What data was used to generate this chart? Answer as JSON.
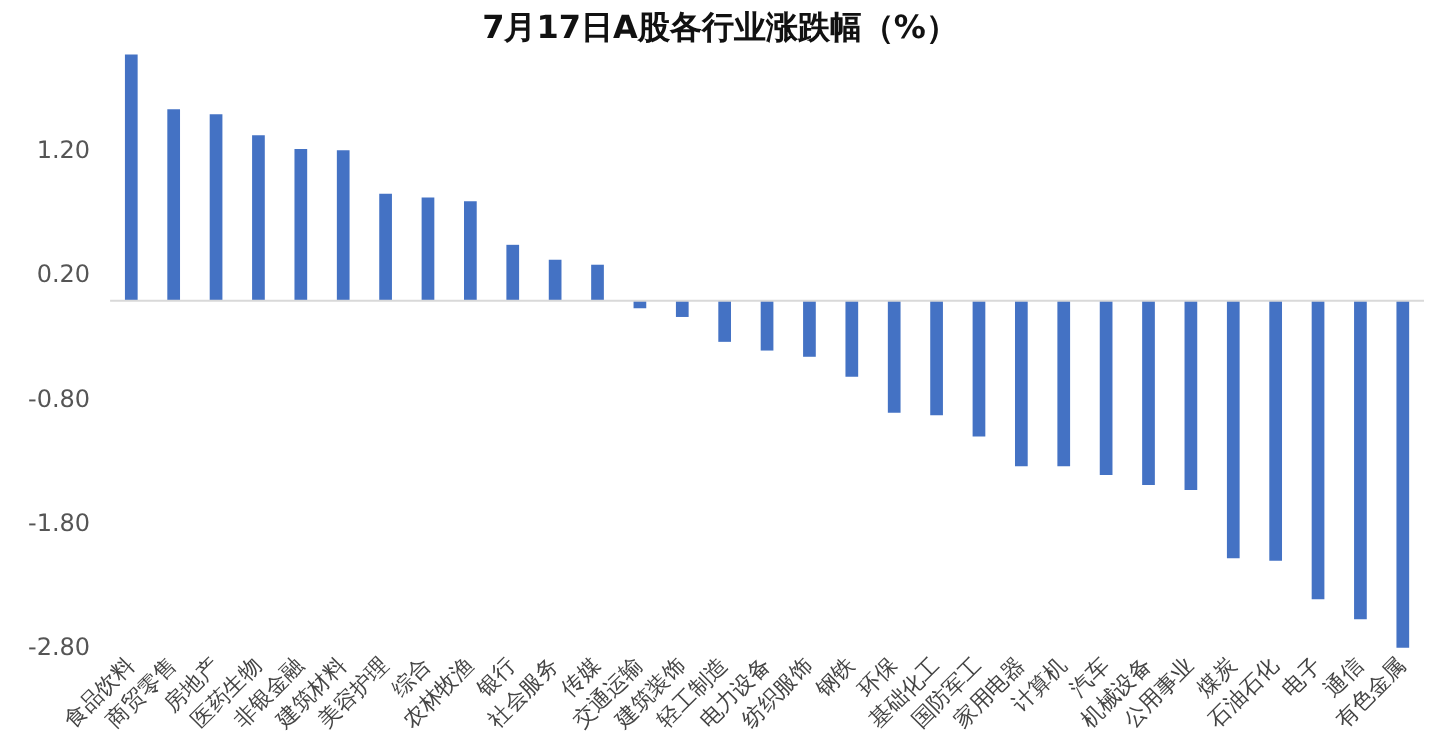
{
  "chart_data": {
    "type": "bar",
    "title": "7月17日A股各行业涨跌幅（%）",
    "categories": [
      "食品饮料",
      "商贸零售",
      "房地产",
      "医药生物",
      "非银金融",
      "建筑材料",
      "美容护理",
      "综合",
      "农林牧渔",
      "银行",
      "社会服务",
      "传媒",
      "交通运输",
      "建筑装饰",
      "轻工制造",
      "电力设备",
      "纺织服饰",
      "钢铁",
      "环保",
      "基础化工",
      "国防军工",
      "家用电器",
      "计算机",
      "汽车",
      "机械设备",
      "公用事业",
      "煤炭",
      "石油石化",
      "电子",
      "通信",
      "有色金属"
    ],
    "values": [
      1.98,
      1.54,
      1.5,
      1.33,
      1.22,
      1.21,
      0.86,
      0.83,
      0.8,
      0.45,
      0.33,
      0.29,
      -0.06,
      -0.13,
      -0.33,
      -0.4,
      -0.45,
      -0.61,
      -0.9,
      -0.92,
      -1.09,
      -1.33,
      -1.33,
      -1.4,
      -1.48,
      -1.52,
      -2.07,
      -2.09,
      -2.4,
      -2.56,
      -2.79
    ],
    "color": "#4472c4",
    "ylim": [
      -2.8,
      2.0
    ],
    "yticks": [
      {
        "value": 1.2,
        "label": "1.20"
      },
      {
        "value": 0.2,
        "label": "0.20"
      },
      {
        "value": -0.8,
        "label": "-0.80"
      },
      {
        "value": -1.8,
        "label": "-1.80"
      },
      {
        "value": -2.8,
        "label": "-2.80"
      }
    ],
    "grid": false,
    "legend": false
  }
}
